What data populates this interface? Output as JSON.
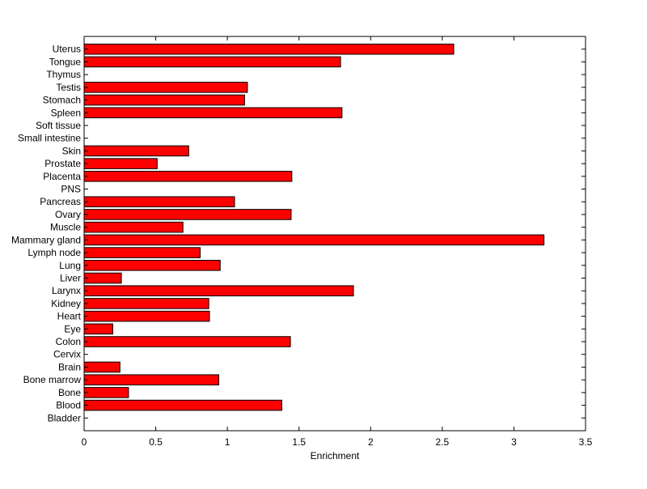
{
  "chart_data": {
    "type": "bar",
    "orientation": "horizontal",
    "title": "",
    "xlabel": "Enrichment",
    "ylabel": "",
    "xlim": [
      0,
      3.5
    ],
    "xticks": [
      0,
      0.5,
      1,
      1.5,
      2,
      2.5,
      3,
      3.5
    ],
    "xtick_labels": [
      "0",
      "0.5",
      "1",
      "1.5",
      "2",
      "2.5",
      "3",
      "3.5"
    ],
    "categories": [
      "Bladder",
      "Blood",
      "Bone",
      "Bone marrow",
      "Brain",
      "Cervix",
      "Colon",
      "Eye",
      "Heart",
      "Kidney",
      "Larynx",
      "Liver",
      "Lung",
      "Lymph node",
      "Mammary gland",
      "Muscle",
      "Ovary",
      "Pancreas",
      "PNS",
      "Placenta",
      "Prostate",
      "Skin",
      "Small intestine",
      "Soft tissue",
      "Spleen",
      "Stomach",
      "Testis",
      "Thymus",
      "Tongue",
      "Uterus"
    ],
    "values": [
      0,
      1.38,
      0.31,
      0.94,
      0.25,
      0,
      1.44,
      0.2,
      0.875,
      0.87,
      1.88,
      0.26,
      0.95,
      0.81,
      3.21,
      0.69,
      1.445,
      1.05,
      0,
      1.45,
      0.51,
      0.73,
      0,
      0,
      1.8,
      1.12,
      1.14,
      0,
      1.79,
      2.58
    ],
    "bar_color": "#ff0000",
    "grid": false,
    "legend": "none"
  }
}
